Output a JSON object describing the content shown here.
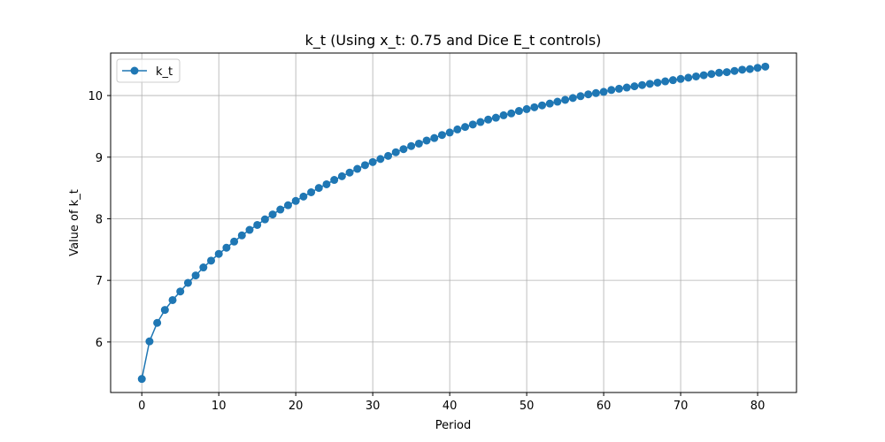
{
  "chart_data": {
    "type": "line",
    "title": "k_t (Using x_t: 0.75 and Dice E_t controls)",
    "xlabel": "Period",
    "ylabel": "Value of k_t",
    "xlim": [
      -4.05,
      85.05
    ],
    "ylim": [
      5.18,
      10.69
    ],
    "xticks": [
      0,
      10,
      20,
      30,
      40,
      50,
      60,
      70,
      80
    ],
    "yticks": [
      6,
      7,
      8,
      9,
      10
    ],
    "grid": true,
    "legend_position": "upper-left",
    "series": [
      {
        "name": "k_t",
        "color": "#1f77b4",
        "marker": "circle",
        "x": [
          0,
          1,
          2,
          3,
          4,
          5,
          6,
          7,
          8,
          9,
          10,
          11,
          12,
          13,
          14,
          15,
          16,
          17,
          18,
          19,
          20,
          21,
          22,
          23,
          24,
          25,
          26,
          27,
          28,
          29,
          30,
          31,
          32,
          33,
          34,
          35,
          36,
          37,
          38,
          39,
          40,
          41,
          42,
          43,
          44,
          45,
          46,
          47,
          48,
          49,
          50,
          51,
          52,
          53,
          54,
          55,
          56,
          57,
          58,
          59,
          60,
          61,
          62,
          63,
          64,
          65,
          66,
          67,
          68,
          69,
          70,
          71,
          72,
          73,
          74,
          75,
          76,
          77,
          78,
          79,
          80,
          81
        ],
        "y": [
          5.4,
          6.01,
          6.31,
          6.52,
          6.68,
          6.82,
          6.96,
          7.08,
          7.21,
          7.32,
          7.43,
          7.53,
          7.63,
          7.73,
          7.82,
          7.9,
          7.99,
          8.07,
          8.15,
          8.22,
          8.29,
          8.36,
          8.43,
          8.5,
          8.56,
          8.63,
          8.69,
          8.75,
          8.81,
          8.87,
          8.92,
          8.97,
          9.02,
          9.08,
          9.13,
          9.18,
          9.22,
          9.27,
          9.31,
          9.36,
          9.4,
          9.45,
          9.49,
          9.53,
          9.57,
          9.61,
          9.64,
          9.68,
          9.71,
          9.75,
          9.78,
          9.81,
          9.84,
          9.87,
          9.9,
          9.93,
          9.96,
          9.99,
          10.02,
          10.04,
          10.06,
          10.09,
          10.11,
          10.13,
          10.15,
          10.17,
          10.19,
          10.21,
          10.23,
          10.25,
          10.27,
          10.29,
          10.31,
          10.33,
          10.35,
          10.37,
          10.38,
          10.4,
          10.42,
          10.43,
          10.45,
          10.47
        ]
      }
    ]
  }
}
